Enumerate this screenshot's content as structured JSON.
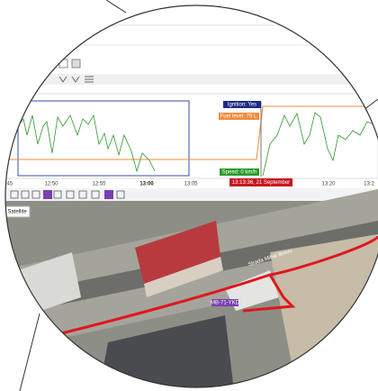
{
  "timeline": {
    "ticks": [
      ":45",
      "12:50",
      "12:55",
      "13:00",
      "13:05",
      "13:20",
      "13:2"
    ]
  },
  "tooltips": {
    "ignition": "Ignition: Yes",
    "fuel": "Fuel level: 79 L",
    "speed": "Speed: 0 km/h",
    "time": "13:13:36, 21 September"
  },
  "map": {
    "layer_tooltip": "Satellite",
    "street": "Strada Mihai Bravu",
    "vehicle": "MB-71-YKD"
  }
}
